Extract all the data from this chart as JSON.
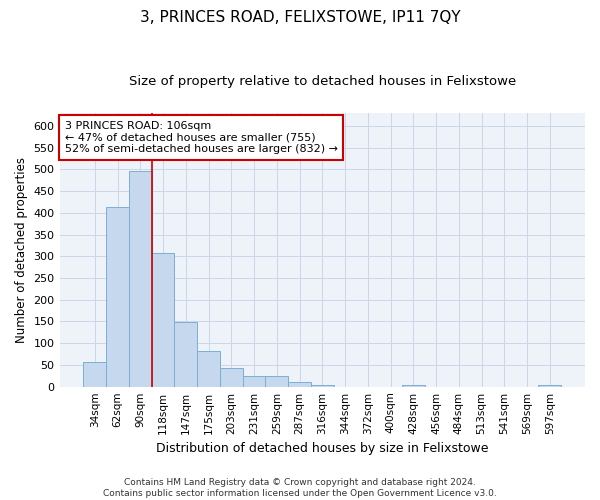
{
  "title": "3, PRINCES ROAD, FELIXSTOWE, IP11 7QY",
  "subtitle": "Size of property relative to detached houses in Felixstowe",
  "xlabel": "Distribution of detached houses by size in Felixstowe",
  "ylabel": "Number of detached properties",
  "footer_line1": "Contains HM Land Registry data © Crown copyright and database right 2024.",
  "footer_line2": "Contains public sector information licensed under the Open Government Licence v3.0.",
  "categories": [
    "34sqm",
    "62sqm",
    "90sqm",
    "118sqm",
    "147sqm",
    "175sqm",
    "203sqm",
    "231sqm",
    "259sqm",
    "287sqm",
    "316sqm",
    "344sqm",
    "372sqm",
    "400sqm",
    "428sqm",
    "456sqm",
    "484sqm",
    "513sqm",
    "541sqm",
    "569sqm",
    "597sqm"
  ],
  "values": [
    57,
    413,
    495,
    308,
    148,
    82,
    43,
    25,
    25,
    10,
    5,
    0,
    0,
    0,
    5,
    0,
    0,
    0,
    0,
    0,
    5
  ],
  "bar_color": "#c5d8ed",
  "bar_edge_color": "#7bafd4",
  "grid_color": "#ccd6e8",
  "background_color": "#eef2f9",
  "annotation_box_color": "#cc0000",
  "annotation_line_color": "#cc0000",
  "property_label": "3 PRINCES ROAD: 106sqm",
  "annotation_line1": "← 47% of detached houses are smaller (755)",
  "annotation_line2": "52% of semi-detached houses are larger (832) →",
  "vline_x": 2.5,
  "ylim": [
    0,
    630
  ],
  "yticks": [
    0,
    50,
    100,
    150,
    200,
    250,
    300,
    350,
    400,
    450,
    500,
    550,
    600
  ],
  "title_fontsize": 11,
  "subtitle_fontsize": 9.5,
  "xlabel_fontsize": 9,
  "ylabel_fontsize": 8.5,
  "tick_fontsize": 8,
  "xtick_fontsize": 7.5,
  "footer_fontsize": 6.5,
  "annot_fontsize": 8
}
